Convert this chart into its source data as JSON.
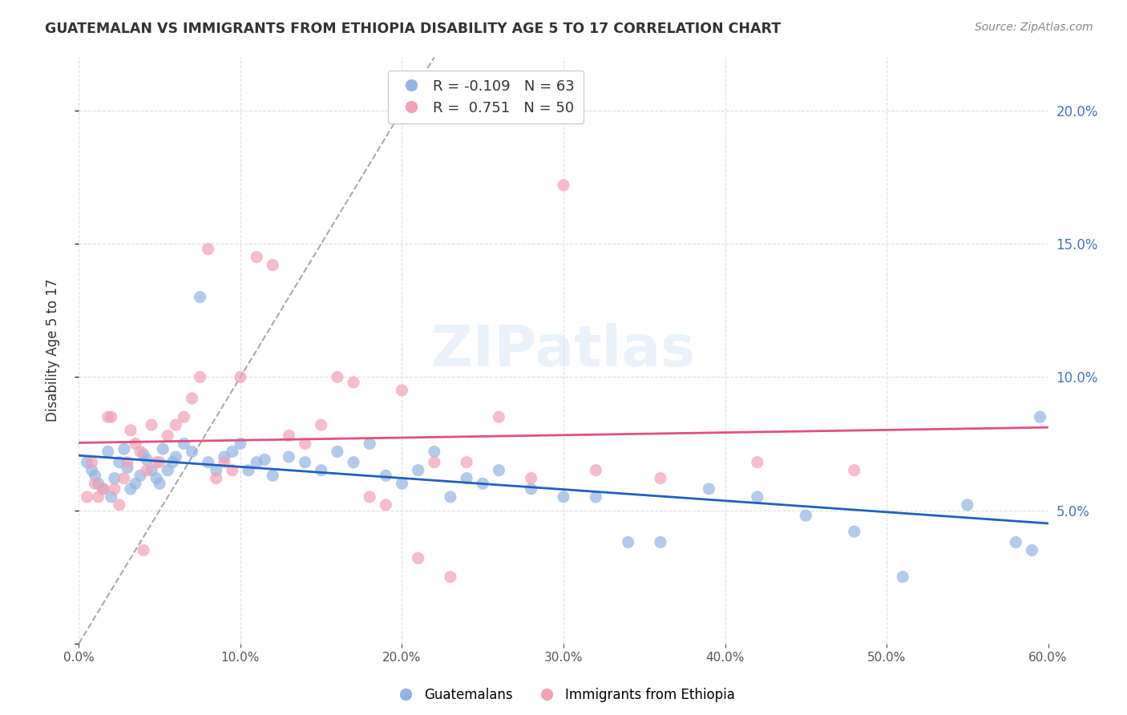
{
  "title": "GUATEMALAN VS IMMIGRANTS FROM ETHIOPIA DISABILITY AGE 5 TO 17 CORRELATION CHART",
  "source": "Source: ZipAtlas.com",
  "xlabel_bottom": "",
  "ylabel": "Disability Age 5 to 17",
  "legend_label1": "Guatemalans",
  "legend_label2": "Immigrants from Ethiopia",
  "R1": -0.109,
  "N1": 63,
  "R2": 0.751,
  "N2": 50,
  "color1": "#92b4e3",
  "color2": "#f4a0b5",
  "line_color1": "#2060c0",
  "line_color2": "#e05080",
  "xlim": [
    0.0,
    0.6
  ],
  "ylim": [
    0.0,
    0.22
  ],
  "yticks_right": [
    0.05,
    0.1,
    0.15,
    0.2
  ],
  "ytick_labels_right": [
    "5.0%",
    "10.0%",
    "15.0%",
    "20.0%"
  ],
  "xticks": [
    0.0,
    0.1,
    0.2,
    0.3,
    0.4,
    0.5,
    0.6
  ],
  "xtick_labels": [
    "0.0%",
    "10.0%",
    "20.0%",
    "30.0%",
    "40.0%",
    "50.0%",
    "60.0%"
  ],
  "blue_x": [
    0.005,
    0.008,
    0.01,
    0.012,
    0.015,
    0.018,
    0.02,
    0.022,
    0.025,
    0.028,
    0.03,
    0.032,
    0.035,
    0.038,
    0.04,
    0.042,
    0.045,
    0.048,
    0.05,
    0.052,
    0.055,
    0.058,
    0.06,
    0.065,
    0.07,
    0.075,
    0.08,
    0.085,
    0.09,
    0.095,
    0.1,
    0.105,
    0.11,
    0.115,
    0.12,
    0.13,
    0.14,
    0.15,
    0.16,
    0.17,
    0.18,
    0.19,
    0.2,
    0.21,
    0.22,
    0.23,
    0.24,
    0.25,
    0.26,
    0.28,
    0.3,
    0.32,
    0.34,
    0.36,
    0.39,
    0.42,
    0.45,
    0.48,
    0.51,
    0.55,
    0.58,
    0.59,
    0.595
  ],
  "blue_y": [
    0.068,
    0.065,
    0.063,
    0.06,
    0.058,
    0.072,
    0.055,
    0.062,
    0.068,
    0.073,
    0.066,
    0.058,
    0.06,
    0.063,
    0.071,
    0.069,
    0.065,
    0.062,
    0.06,
    0.073,
    0.065,
    0.068,
    0.07,
    0.075,
    0.072,
    0.13,
    0.068,
    0.065,
    0.07,
    0.072,
    0.075,
    0.065,
    0.068,
    0.069,
    0.063,
    0.07,
    0.068,
    0.065,
    0.072,
    0.068,
    0.075,
    0.063,
    0.06,
    0.065,
    0.072,
    0.055,
    0.062,
    0.06,
    0.065,
    0.058,
    0.055,
    0.055,
    0.038,
    0.038,
    0.058,
    0.055,
    0.048,
    0.042,
    0.025,
    0.052,
    0.038,
    0.035,
    0.085
  ],
  "pink_x": [
    0.005,
    0.008,
    0.01,
    0.012,
    0.015,
    0.018,
    0.02,
    0.022,
    0.025,
    0.028,
    0.03,
    0.032,
    0.035,
    0.038,
    0.04,
    0.042,
    0.045,
    0.048,
    0.05,
    0.055,
    0.06,
    0.065,
    0.07,
    0.075,
    0.08,
    0.085,
    0.09,
    0.095,
    0.1,
    0.11,
    0.12,
    0.13,
    0.14,
    0.15,
    0.16,
    0.17,
    0.18,
    0.19,
    0.2,
    0.21,
    0.22,
    0.23,
    0.24,
    0.26,
    0.28,
    0.3,
    0.32,
    0.36,
    0.42,
    0.48
  ],
  "pink_y": [
    0.055,
    0.068,
    0.06,
    0.055,
    0.058,
    0.085,
    0.085,
    0.058,
    0.052,
    0.062,
    0.068,
    0.08,
    0.075,
    0.072,
    0.035,
    0.065,
    0.082,
    0.068,
    0.068,
    0.078,
    0.082,
    0.085,
    0.092,
    0.1,
    0.148,
    0.062,
    0.068,
    0.065,
    0.1,
    0.145,
    0.142,
    0.078,
    0.075,
    0.082,
    0.1,
    0.098,
    0.055,
    0.052,
    0.095,
    0.032,
    0.068,
    0.025,
    0.068,
    0.085,
    0.062,
    0.172,
    0.065,
    0.062,
    0.068,
    0.065
  ],
  "watermark": "ZIPatlas",
  "background_color": "#ffffff",
  "grid_color": "#dddddd"
}
